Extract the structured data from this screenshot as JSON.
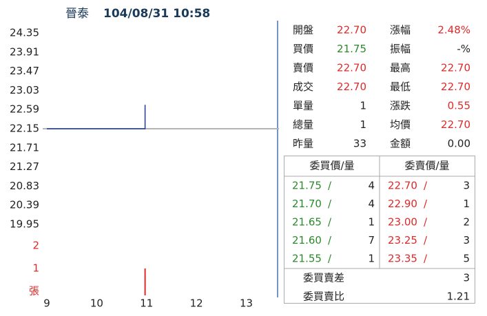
{
  "header": {
    "name": "晉泰",
    "datetime": "104/08/31 10:58"
  },
  "chart_data": {
    "type": "line",
    "x": [
      9,
      10.97,
      10.97
    ],
    "xlim": [
      9,
      13.6
    ],
    "xticks": [
      9,
      10,
      11,
      12,
      13
    ],
    "series": [
      {
        "color": "#1f3a93",
        "values": [
          22.15,
          22.15,
          22.7
        ]
      }
    ],
    "ylim": [
      19.95,
      24.35
    ],
    "yticks": [
      24.35,
      23.91,
      23.47,
      23.03,
      22.59,
      22.15,
      21.71,
      21.27,
      20.83,
      20.39,
      19.95
    ],
    "reference": 22.15,
    "reference_color": "#b4b4b4",
    "volume": {
      "x": [
        10.97
      ],
      "values": [
        1
      ],
      "color": "#e02828",
      "ylim": [
        0,
        2
      ],
      "yticks": [
        1,
        2
      ],
      "unit": "張",
      "tick_color": "#e02828"
    }
  },
  "quote": {
    "rows": [
      [
        "開盤",
        "22.70",
        "漲幅",
        "2.48%"
      ],
      [
        "買價",
        "21.75",
        "振幅",
        "-%"
      ],
      [
        "賣價",
        "22.70",
        "最高",
        "22.70"
      ],
      [
        "成交",
        "22.70",
        "最低",
        "22.70"
      ],
      [
        "單量",
        "1",
        "漲跌",
        "0.55"
      ],
      [
        "總量",
        "1",
        "均價",
        "22.70"
      ],
      [
        "昨量",
        "33",
        "金額",
        "0.00"
      ]
    ],
    "value_colors": [
      [
        "#e02828",
        "#e02828"
      ],
      [
        "#2a8a2a",
        "#222"
      ],
      [
        "#e02828",
        "#e02828"
      ],
      [
        "#e02828",
        "#e02828"
      ],
      [
        "#222",
        "#e02828"
      ],
      [
        "#222",
        "#e02828"
      ],
      [
        "#222",
        "#222"
      ]
    ]
  },
  "order_book": {
    "headers": [
      "委買價/量",
      "委賣價/量"
    ],
    "separator": "/",
    "bids": [
      [
        "21.75",
        "4"
      ],
      [
        "21.70",
        "4"
      ],
      [
        "21.65",
        "1"
      ],
      [
        "21.60",
        "7"
      ],
      [
        "21.55",
        "1"
      ]
    ],
    "asks": [
      [
        "22.70",
        "3"
      ],
      [
        "22.90",
        "1"
      ],
      [
        "23.00",
        "2"
      ],
      [
        "23.25",
        "3"
      ],
      [
        "23.35",
        "5"
      ]
    ],
    "bid_color": "#2a8a2a",
    "ask_color": "#e02828",
    "summary": [
      [
        "委買賣差",
        "3"
      ],
      [
        "委買賣比",
        "1.21"
      ]
    ]
  }
}
